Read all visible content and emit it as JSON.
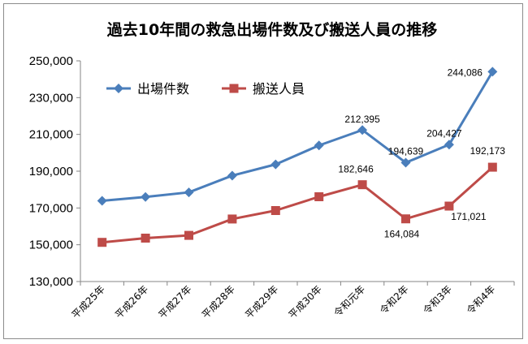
{
  "chart_data": {
    "type": "line",
    "title": "過去10年間の救急出場件数及び搬送人員の推移",
    "xlabel": "",
    "ylabel": "",
    "categories": [
      "平成25年",
      "平成26年",
      "平成27年",
      "平成28年",
      "平成29年",
      "平成30年",
      "令和元年",
      "令和2年",
      "令和3年",
      "令和4年"
    ],
    "ylim": [
      130000,
      250000
    ],
    "yticks": [
      130000,
      150000,
      170000,
      190000,
      210000,
      230000,
      250000
    ],
    "ytick_labels": [
      "130,000",
      "150,000",
      "170,000",
      "190,000",
      "210,000",
      "230,000",
      "250,000"
    ],
    "grid": false,
    "legend_position": "top-left",
    "series": [
      {
        "name": "出場件数",
        "color": "#4a7ebb",
        "marker": "diamond",
        "values": [
          173900,
          176000,
          178500,
          187600,
          193700,
          204000,
          212395,
          194639,
          204427,
          244086
        ],
        "labels": [
          "",
          "",
          "",
          "",
          "",
          "",
          "212,395",
          "194,639",
          "204,427",
          "244,086"
        ]
      },
      {
        "name": "搬送人員",
        "color": "#be4b48",
        "marker": "square",
        "values": [
          151300,
          153600,
          155100,
          164000,
          168600,
          176100,
          182646,
          164084,
          171021,
          192173
        ],
        "labels": [
          "",
          "",
          "",
          "",
          "",
          "",
          "182,646",
          "164,084",
          "171,021",
          "192,173"
        ]
      }
    ]
  }
}
